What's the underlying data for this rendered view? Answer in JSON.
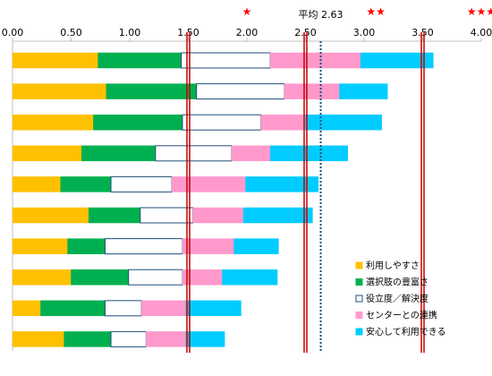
{
  "chart_data": {
    "type": "bar",
    "orientation": "horizontal",
    "stacked": true,
    "xlim": [
      0,
      4
    ],
    "x_ticks": [
      "0.00",
      "0.50",
      "1.00",
      "1.50",
      "2.00",
      "2.50",
      "3.00",
      "3.50",
      "4.00"
    ],
    "x_tick_values": [
      0,
      0.5,
      1,
      1.5,
      2,
      2.5,
      3,
      3.5,
      4
    ],
    "gridlines": false,
    "legend_position": "bottom-right",
    "row_count": 10,
    "series": [
      {
        "name": "利用しやすさ",
        "color": "#FFC000",
        "border": "#FFC000",
        "values": [
          0.73,
          0.8,
          0.69,
          0.59,
          0.41,
          0.65,
          0.47,
          0.5,
          0.24,
          0.44
        ]
      },
      {
        "name": "選択肢の豊富さ",
        "color": "#00B050",
        "border": "#00B050",
        "values": [
          0.71,
          0.77,
          0.76,
          0.63,
          0.43,
          0.44,
          0.32,
          0.49,
          0.55,
          0.4
        ]
      },
      {
        "name": "役立度／解決度",
        "color": "#FFFFFF",
        "border": "#1F4E79",
        "values": [
          0.76,
          0.75,
          0.67,
          0.65,
          0.52,
          0.45,
          0.66,
          0.46,
          0.31,
          0.3
        ]
      },
      {
        "name": "センターとの連携",
        "color": "#FF99CC",
        "border": "#FF99CC",
        "values": [
          0.77,
          0.47,
          0.38,
          0.33,
          0.63,
          0.43,
          0.44,
          0.34,
          0.38,
          0.34
        ]
      },
      {
        "name": "安心して利用できる",
        "color": "#00CCFF",
        "border": "#00CCFF",
        "values": [
          0.62,
          0.41,
          0.65,
          0.66,
          0.62,
          0.59,
          0.38,
          0.47,
          0.47,
          0.33
        ]
      }
    ],
    "reference_lines": [
      {
        "value": 1.5,
        "style": "solid",
        "color": "#C00000"
      },
      {
        "value": 2.5,
        "style": "solid",
        "color": "#C00000"
      },
      {
        "value": 3.5,
        "style": "solid",
        "color": "#C00000"
      },
      {
        "value": 2.63,
        "style": "dotted",
        "color": "#1F4E79"
      }
    ],
    "annotations": {
      "average_label": "平均 2.63",
      "star_levels": [
        {
          "stars": "★",
          "x": 2.0
        },
        {
          "stars": "★★",
          "x": 3.1
        },
        {
          "stars": "★★★",
          "x": 4.0
        }
      ],
      "star_color": "#FF0000"
    }
  }
}
